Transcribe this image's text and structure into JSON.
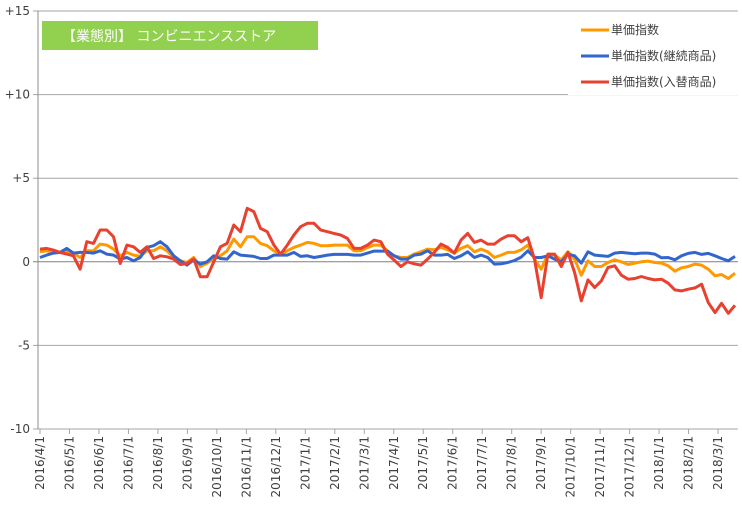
{
  "chart_data": {
    "type": "line",
    "title": "【業態別】 コンビニエンスストア",
    "xlabel": "",
    "ylabel": "",
    "ylim": [
      -10,
      15
    ],
    "yticks": [
      15,
      10,
      5,
      0,
      -5,
      -10
    ],
    "ytick_labels": [
      "+15",
      "+10",
      "+5",
      "0",
      "-5",
      "-10"
    ],
    "x_tick_labels": [
      "2016/4/1",
      "2016/5/1",
      "2016/6/1",
      "2016/7/1",
      "2016/8/1",
      "2016/9/1",
      "2016/10/1",
      "2016/11/1",
      "2016/12/1",
      "2017/1/1",
      "2017/2/1",
      "2017/3/1",
      "2017/4/1",
      "2017/5/1",
      "2017/6/1",
      "2017/7/1",
      "2017/8/1",
      "2017/9/1",
      "2017/10/1",
      "2017/11/1",
      "2017/12/1",
      "2018/1/1",
      "2018/2/1",
      "2018/3/1"
    ],
    "x_frequency": "weekly",
    "grid": true,
    "legend_position": "top-right",
    "colors": {
      "title_bg": "#92D050",
      "title_text": "#ffffff",
      "grid": "#8c8c8c"
    },
    "series": [
      {
        "name": "単価指数",
        "color": "#FF9900",
        "values": [
          0.6,
          0.66,
          0.56,
          0.56,
          0.6,
          0.52,
          0.26,
          0.66,
          0.66,
          1.06,
          1.0,
          0.76,
          0.36,
          0.56,
          0.4,
          0.32,
          0.66,
          0.66,
          0.9,
          0.66,
          0.26,
          0.06,
          -0.04,
          0.26,
          -0.28,
          -0.08,
          0.16,
          0.36,
          0.66,
          1.36,
          0.9,
          1.5,
          1.5,
          1.1,
          0.96,
          0.66,
          0.46,
          0.66,
          0.86,
          1.0,
          1.16,
          1.1,
          0.96,
          0.96,
          1.0,
          1.0,
          1.0,
          0.66,
          0.66,
          0.86,
          1.0,
          1.0,
          0.66,
          0.36,
          0.26,
          0.26,
          0.46,
          0.6,
          0.76,
          0.72,
          0.86,
          0.72,
          0.52,
          0.8,
          0.96,
          0.6,
          0.76,
          0.6,
          0.26,
          0.4,
          0.56,
          0.56,
          0.72,
          1.0,
          0.16,
          -0.44,
          0.46,
          0.4,
          0.12,
          0.6,
          0.16,
          -0.8,
          0.06,
          -0.28,
          -0.28,
          -0.04,
          0.12,
          0,
          -0.16,
          -0.08,
          0,
          0.04,
          -0.04,
          -0.08,
          -0.24,
          -0.56,
          -0.36,
          -0.28,
          -0.14,
          -0.2,
          -0.44,
          -0.84,
          -0.76,
          -1.0,
          -0.68
        ]
      },
      {
        "name": "単価指数(継続商品)",
        "color": "#3366CC",
        "values": [
          0.26,
          0.4,
          0.52,
          0.56,
          0.8,
          0.52,
          0.56,
          0.56,
          0.52,
          0.66,
          0.46,
          0.4,
          0.16,
          0.26,
          0.06,
          0.26,
          0.86,
          0.96,
          1.2,
          0.9,
          0.36,
          0.06,
          -0.2,
          0.12,
          -0.14,
          0,
          0.36,
          0.2,
          0.16,
          0.6,
          0.4,
          0.36,
          0.32,
          0.2,
          0.2,
          0.4,
          0.4,
          0.4,
          0.56,
          0.32,
          0.36,
          0.26,
          0.32,
          0.4,
          0.44,
          0.44,
          0.44,
          0.4,
          0.4,
          0.52,
          0.64,
          0.64,
          0.64,
          0.36,
          0.16,
          0.16,
          0.4,
          0.46,
          0.66,
          0.4,
          0.4,
          0.44,
          0.2,
          0.36,
          0.6,
          0.26,
          0.4,
          0.26,
          -0.14,
          -0.12,
          -0.04,
          0.08,
          0.28,
          0.66,
          0.26,
          0.26,
          0.36,
          0.16,
          0,
          0.46,
          0.36,
          -0.08,
          0.6,
          0.4,
          0.36,
          0.32,
          0.52,
          0.56,
          0.52,
          0.48,
          0.52,
          0.52,
          0.46,
          0.24,
          0.26,
          0.12,
          0.36,
          0.5,
          0.56,
          0.44,
          0.5,
          0.36,
          0.2,
          0.06,
          0.32
        ]
      },
      {
        "name": "単価指数(入替商品)",
        "color": "#E8412F",
        "values": [
          0.76,
          0.8,
          0.7,
          0.56,
          0.46,
          0.36,
          -0.44,
          1.2,
          1.1,
          1.9,
          1.9,
          1.5,
          -0.1,
          1.0,
          0.9,
          0.56,
          0.9,
          0.2,
          0.36,
          0.3,
          0.16,
          -0.16,
          -0.1,
          0.16,
          -0.9,
          -0.9,
          0,
          0.9,
          1.1,
          2.2,
          1.8,
          3.2,
          3.0,
          2.0,
          1.8,
          1.0,
          0.46,
          1.0,
          1.6,
          2.1,
          2.3,
          2.3,
          1.9,
          1.8,
          1.7,
          1.6,
          1.4,
          0.8,
          0.8,
          1.0,
          1.3,
          1.2,
          0.46,
          0.1,
          -0.28,
          0,
          -0.12,
          -0.2,
          0.16,
          0.56,
          1.06,
          0.86,
          0.52,
          1.3,
          1.7,
          1.16,
          1.3,
          1.06,
          1.06,
          1.36,
          1.56,
          1.56,
          1.2,
          1.44,
          0.16,
          -2.14,
          0.46,
          0.46,
          -0.28,
          0.56,
          -0.64,
          -2.34,
          -1.08,
          -1.54,
          -1.14,
          -0.34,
          -0.24,
          -0.8,
          -1.04,
          -1.0,
          -0.88,
          -1.0,
          -1.08,
          -1.04,
          -1.28,
          -1.68,
          -1.74,
          -1.64,
          -1.56,
          -1.34,
          -2.44,
          -3.04,
          -2.48,
          -3.08,
          -2.6
        ]
      }
    ]
  }
}
